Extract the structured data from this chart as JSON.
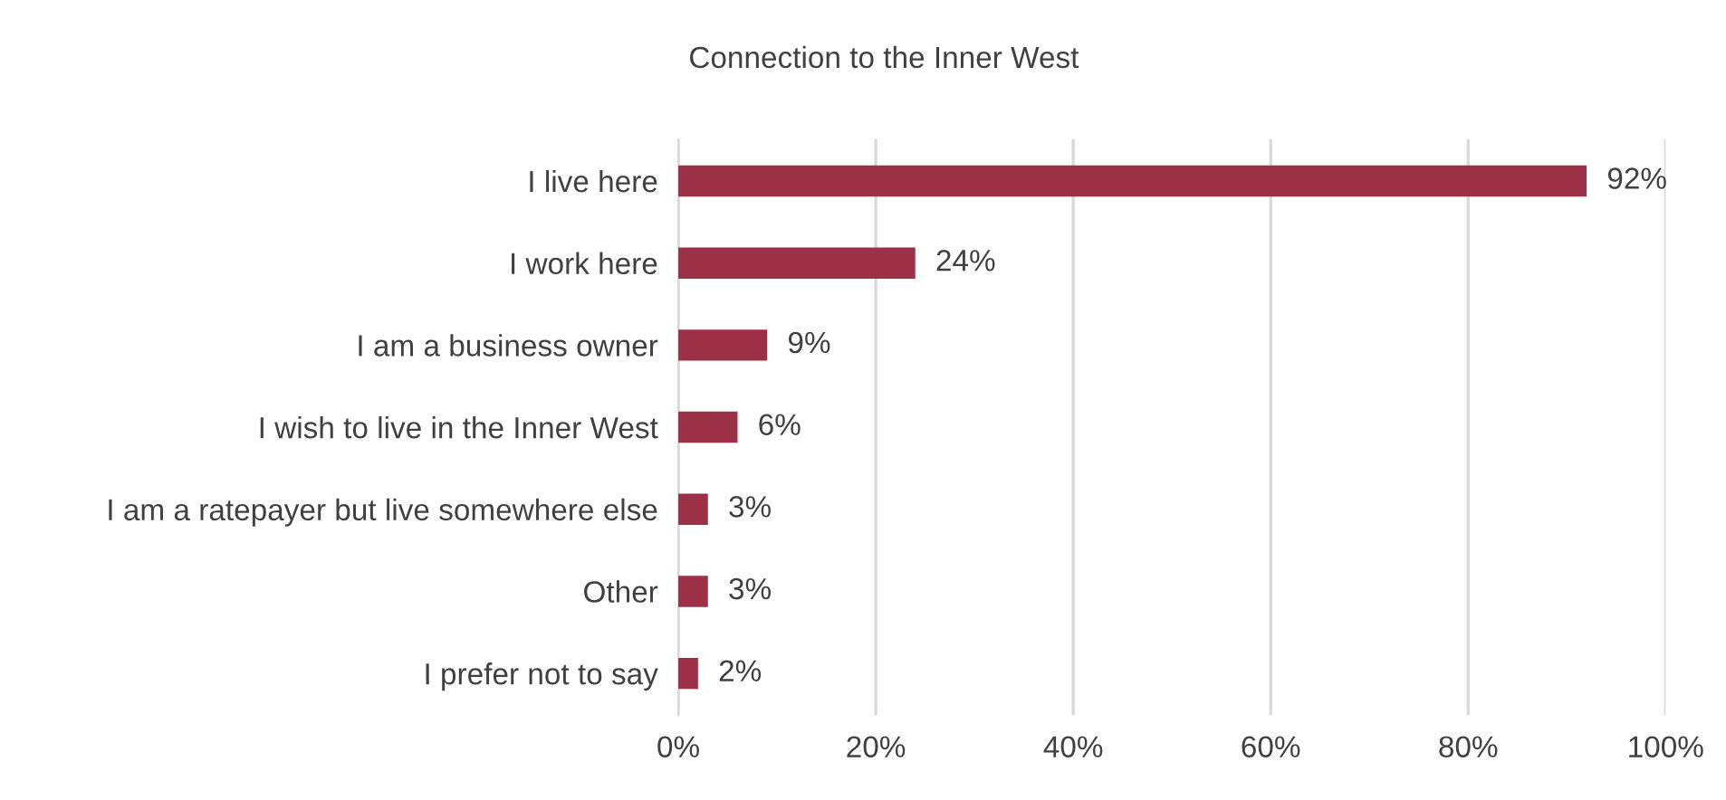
{
  "chart_data": {
    "type": "bar",
    "orientation": "horizontal",
    "title": "Connection to the Inner West",
    "categories": [
      "I live here",
      "I work here",
      "I am a business owner",
      "I wish to live in the Inner West",
      "I am a ratepayer but live somewhere else",
      "Other",
      "I prefer not to say"
    ],
    "values": [
      92,
      24,
      9,
      6,
      3,
      3,
      2
    ],
    "value_labels": [
      "92%",
      "24%",
      "9%",
      "6%",
      "3%",
      "3%",
      "2%"
    ],
    "color": "#9b3046",
    "xlim": [
      0,
      100
    ],
    "xticks": [
      {
        "value": 0,
        "label": "0%"
      },
      {
        "value": 20,
        "label": "20%"
      },
      {
        "value": 40,
        "label": "40%"
      },
      {
        "value": 60,
        "label": "60%"
      },
      {
        "value": 80,
        "label": "80%"
      },
      {
        "value": 100,
        "label": "100%"
      }
    ],
    "grid": "x"
  }
}
